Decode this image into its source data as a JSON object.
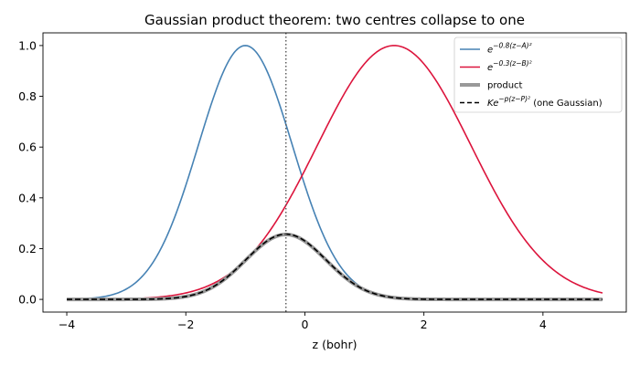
{
  "chart_data": {
    "type": "line",
    "title": "Gaussian product theorem: two centres collapse to one",
    "xlabel": "z (bohr)",
    "ylabel": "",
    "xlim": [
      -4.4,
      5.4
    ],
    "ylim": [
      -0.05,
      1.05
    ],
    "x_ticks": [
      -4,
      -2,
      0,
      2,
      4
    ],
    "x_tick_labels": [
      "−4",
      "−2",
      "0",
      "2",
      "4"
    ],
    "y_ticks": [
      0.0,
      0.2,
      0.4,
      0.6,
      0.8,
      1.0
    ],
    "y_tick_labels": [
      "0.0",
      "0.2",
      "0.4",
      "0.6",
      "0.8",
      "1.0"
    ],
    "grid": false,
    "legend_position": "top-right",
    "x_range": [
      -4,
      5
    ],
    "series": [
      {
        "name": "e^{−0.8(z−A)²}",
        "legend_base": "e",
        "legend_exponent": "−0.8(z−A)²",
        "legend_suffix": "",
        "color": "#4682b4",
        "style": "solid",
        "kind": "gaussian",
        "alpha": 0.8,
        "center": -1.0,
        "peak_x": -1.0,
        "peak_y": 1.0
      },
      {
        "name": "e^{−0.3(z−B)²}",
        "legend_base": "e",
        "legend_exponent": "−0.3(z−B)²",
        "legend_suffix": "",
        "color": "#dc143c",
        "style": "solid",
        "kind": "gaussian",
        "alpha": 0.3,
        "center": 1.5,
        "peak_x": 1.5,
        "peak_y": 1.0
      },
      {
        "name": "product",
        "legend_base": "product",
        "legend_exponent": "",
        "legend_suffix": "",
        "color": "#999999",
        "style": "thick",
        "kind": "product",
        "peak_x": -0.318,
        "peak_y": 0.257
      },
      {
        "name": "Ke^{−p(z−P)²} (one Gaussian)",
        "legend_base": "Ke",
        "legend_exponent": "−p(z−P)²",
        "legend_suffix": " (one Gaussian)",
        "color": "#000000",
        "style": "dashed",
        "kind": "combined",
        "p": 1.1,
        "P": -0.318,
        "K": 0.257
      }
    ],
    "vertical_line": {
      "x": -0.318,
      "color": "#555555",
      "style": "dotted"
    }
  }
}
